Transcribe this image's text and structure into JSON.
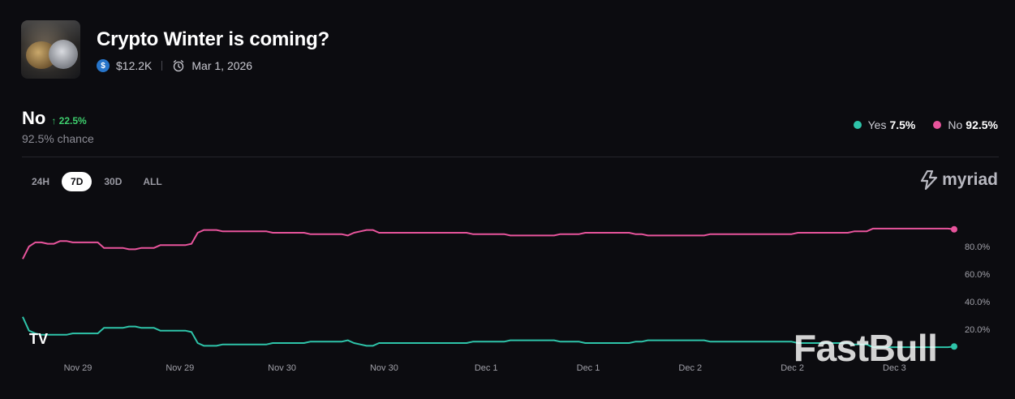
{
  "market": {
    "title": "Crypto Winter is coming?",
    "volume": "$12.2K",
    "end_date": "Mar 1, 2026",
    "volume_icon": "usdc-icon",
    "date_icon": "alarm-clock-icon"
  },
  "outcome": {
    "name": "No",
    "delta": "↑ 22.5%",
    "chance": "92.5% chance"
  },
  "legend": [
    {
      "label": "Yes",
      "value": "7.5%",
      "color": "#2ec4a9"
    },
    {
      "label": "No",
      "value": "92.5%",
      "color": "#e8549c"
    }
  ],
  "tabs": [
    {
      "label": "24H",
      "active": false
    },
    {
      "label": "7D",
      "active": true
    },
    {
      "label": "30D",
      "active": false
    },
    {
      "label": "ALL",
      "active": false
    }
  ],
  "brand": "myriad",
  "watermark": "FastBull",
  "tv_logo": "TV",
  "chart_data": {
    "type": "line",
    "x_ticks": [
      "Nov 29",
      "Nov 29",
      "Nov 30",
      "Nov 30",
      "Dec 1",
      "Dec 1",
      "Dec 2",
      "Dec 2",
      "Dec 3"
    ],
    "y_ticks": [
      "20.0%",
      "40.0%",
      "60.0%",
      "80.0%"
    ],
    "ylim": [
      0,
      100
    ],
    "series": [
      {
        "name": "No",
        "color": "#e8549c",
        "values": [
          71,
          80,
          83,
          83,
          82,
          82,
          84,
          84,
          83,
          83,
          83,
          83,
          83,
          79,
          79,
          79,
          79,
          78,
          78,
          79,
          79,
          79,
          81,
          81,
          81,
          81,
          81,
          82,
          90,
          92,
          92,
          92,
          91,
          91,
          91,
          91,
          91,
          91,
          91,
          91,
          90,
          90,
          90,
          90,
          90,
          90,
          89,
          89,
          89,
          89,
          89,
          89,
          88,
          90,
          91,
          92,
          92,
          90,
          90,
          90,
          90,
          90,
          90,
          90,
          90,
          90,
          90,
          90,
          90,
          90,
          90,
          90,
          89,
          89,
          89,
          89,
          89,
          89,
          88,
          88,
          88,
          88,
          88,
          88,
          88,
          88,
          89,
          89,
          89,
          89,
          90,
          90,
          90,
          90,
          90,
          90,
          90,
          90,
          89,
          89,
          88,
          88,
          88,
          88,
          88,
          88,
          88,
          88,
          88,
          88,
          89,
          89,
          89,
          89,
          89,
          89,
          89,
          89,
          89,
          89,
          89,
          89,
          89,
          89,
          90,
          90,
          90,
          90,
          90,
          90,
          90,
          90,
          90,
          91,
          91,
          91,
          93,
          93,
          93,
          93,
          93,
          93,
          93,
          93,
          93,
          93,
          93,
          93,
          93,
          92.5
        ]
      },
      {
        "name": "Yes",
        "color": "#2ec4a9",
        "values": [
          29,
          19,
          17,
          16,
          16,
          16,
          16,
          16,
          17,
          17,
          17,
          17,
          17,
          21,
          21,
          21,
          21,
          22,
          22,
          21,
          21,
          21,
          19,
          19,
          19,
          19,
          19,
          18,
          10,
          8,
          8,
          8,
          9,
          9,
          9,
          9,
          9,
          9,
          9,
          9,
          10,
          10,
          10,
          10,
          10,
          10,
          11,
          11,
          11,
          11,
          11,
          11,
          12,
          10,
          9,
          8,
          8,
          10,
          10,
          10,
          10,
          10,
          10,
          10,
          10,
          10,
          10,
          10,
          10,
          10,
          10,
          10,
          11,
          11,
          11,
          11,
          11,
          11,
          12,
          12,
          12,
          12,
          12,
          12,
          12,
          12,
          11,
          11,
          11,
          11,
          10,
          10,
          10,
          10,
          10,
          10,
          10,
          10,
          11,
          11,
          12,
          12,
          12,
          12,
          12,
          12,
          12,
          12,
          12,
          12,
          11,
          11,
          11,
          11,
          11,
          11,
          11,
          11,
          11,
          11,
          11,
          11,
          11,
          11,
          10,
          10,
          10,
          10,
          10,
          10,
          10,
          10,
          10,
          9,
          9,
          9,
          7,
          7,
          7,
          7,
          7,
          7,
          7,
          7,
          7,
          7,
          7,
          7,
          7,
          7.5
        ]
      }
    ]
  }
}
